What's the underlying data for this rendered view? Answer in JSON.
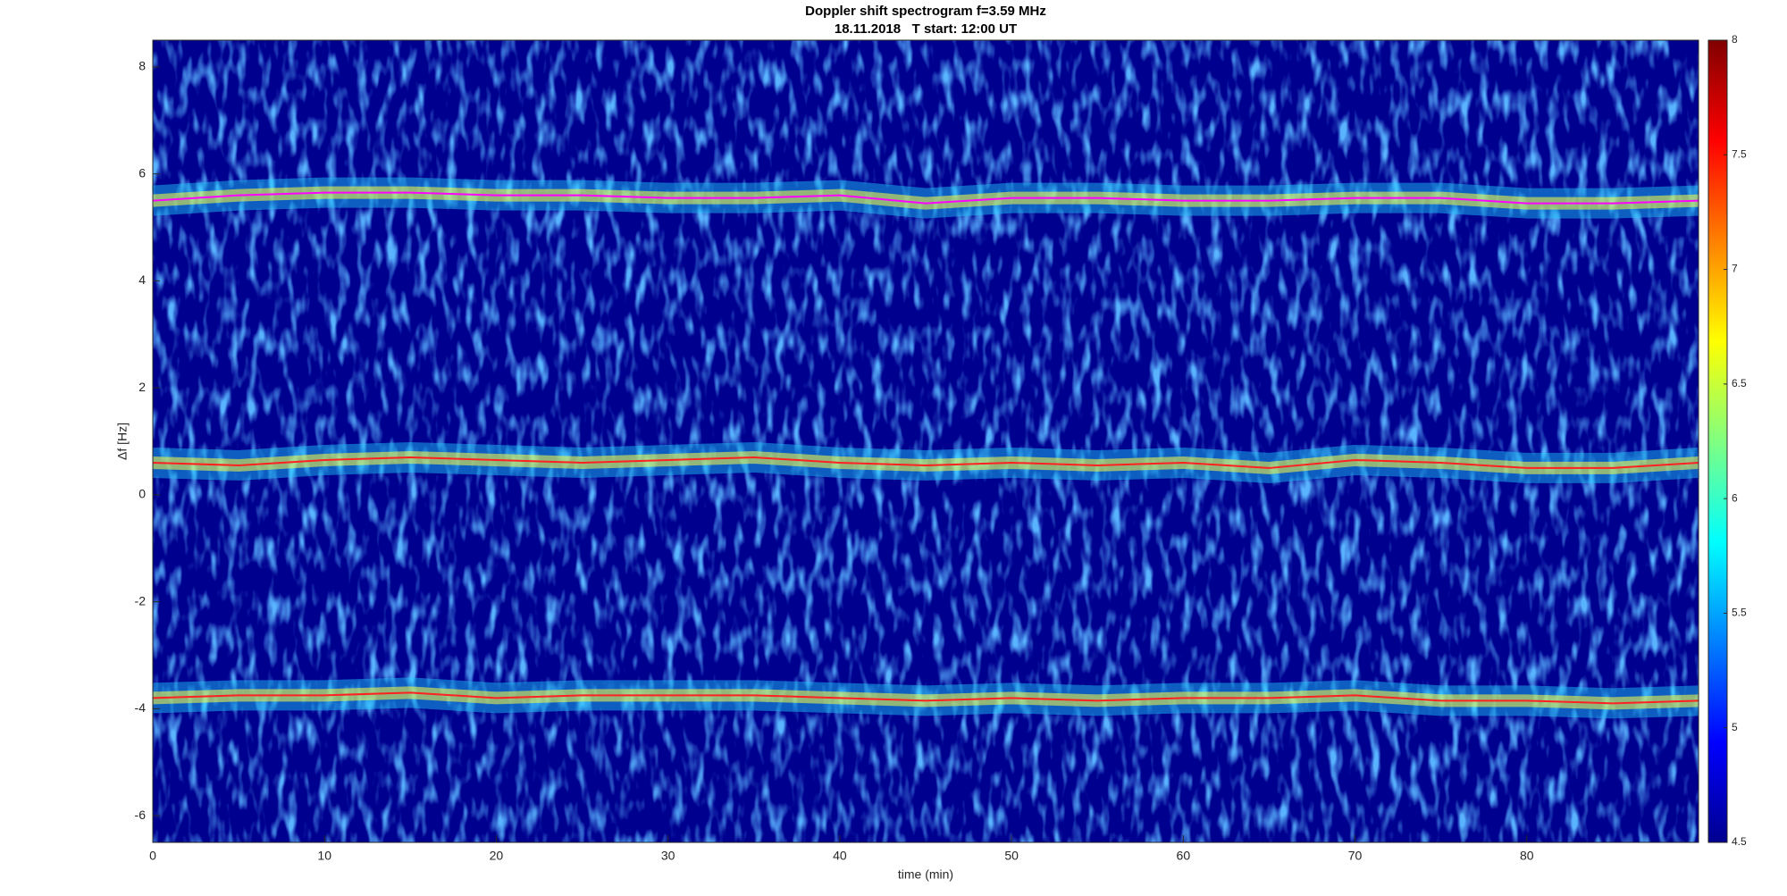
{
  "chart_data": {
    "type": "spectrogram",
    "title": "Doppler shift spectrogram f=3.59 MHz",
    "subtitle": "18.11.2018   T start: 12:00 UT",
    "x_label": "time (min)",
    "y_label": "Δf [Hz]",
    "xlim": [
      0,
      90
    ],
    "xticks": [
      0,
      10,
      20,
      30,
      40,
      50,
      60,
      70,
      80
    ],
    "ylim": [
      -6.5,
      8.5
    ],
    "yticks": [
      -6,
      -4,
      -2,
      0,
      2,
      4,
      6,
      8
    ],
    "x": [
      0,
      5,
      10,
      15,
      20,
      25,
      30,
      35,
      40,
      45,
      50,
      55,
      60,
      65,
      70,
      75,
      80,
      85,
      90
    ],
    "series": [
      {
        "color": "#ff00ff",
        "values": [
          5.5,
          5.6,
          5.65,
          5.65,
          5.6,
          5.6,
          5.55,
          5.55,
          5.6,
          5.45,
          5.55,
          5.55,
          5.5,
          5.5,
          5.55,
          5.55,
          5.45,
          5.45,
          5.5
        ]
      },
      {
        "color": "#ff2020",
        "values": [
          0.6,
          0.55,
          0.65,
          0.7,
          0.65,
          0.6,
          0.65,
          0.7,
          0.6,
          0.55,
          0.6,
          0.55,
          0.6,
          0.5,
          0.65,
          0.6,
          0.5,
          0.5,
          0.6
        ]
      },
      {
        "color": "#ff2020",
        "values": [
          -3.8,
          -3.75,
          -3.75,
          -3.7,
          -3.8,
          -3.75,
          -3.75,
          -3.75,
          -3.8,
          -3.85,
          -3.8,
          -3.85,
          -3.8,
          -3.8,
          -3.75,
          -3.85,
          -3.85,
          -3.9,
          -3.85
        ]
      }
    ],
    "background_color": "#00008f",
    "colorbar": {
      "lim": [
        4.5,
        8
      ],
      "ticks": [
        4.5,
        5,
        5.5,
        6,
        6.5,
        7,
        7.5,
        8
      ],
      "colormap": [
        "#00008f",
        "#0000ff",
        "#0080ff",
        "#00ffff",
        "#80ff80",
        "#ffff00",
        "#ff8000",
        "#ff0000",
        "#800000"
      ]
    }
  }
}
